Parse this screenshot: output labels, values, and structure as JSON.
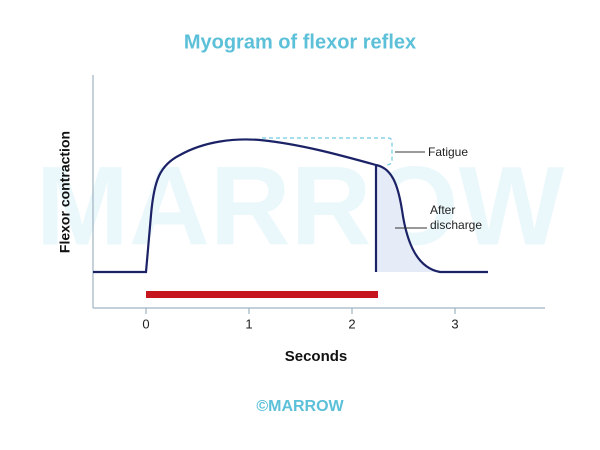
{
  "title": "Myogram of flexor reflex",
  "y_axis_label": "Flexor contraction",
  "x_axis_label": "Seconds",
  "x_ticks": [
    "0",
    "1",
    "2",
    "3"
  ],
  "annotations": {
    "fatigue": "Fatigue",
    "after_discharge": [
      "After",
      "discharge"
    ]
  },
  "watermark": "MARROW",
  "footer": "©MARROW"
}
